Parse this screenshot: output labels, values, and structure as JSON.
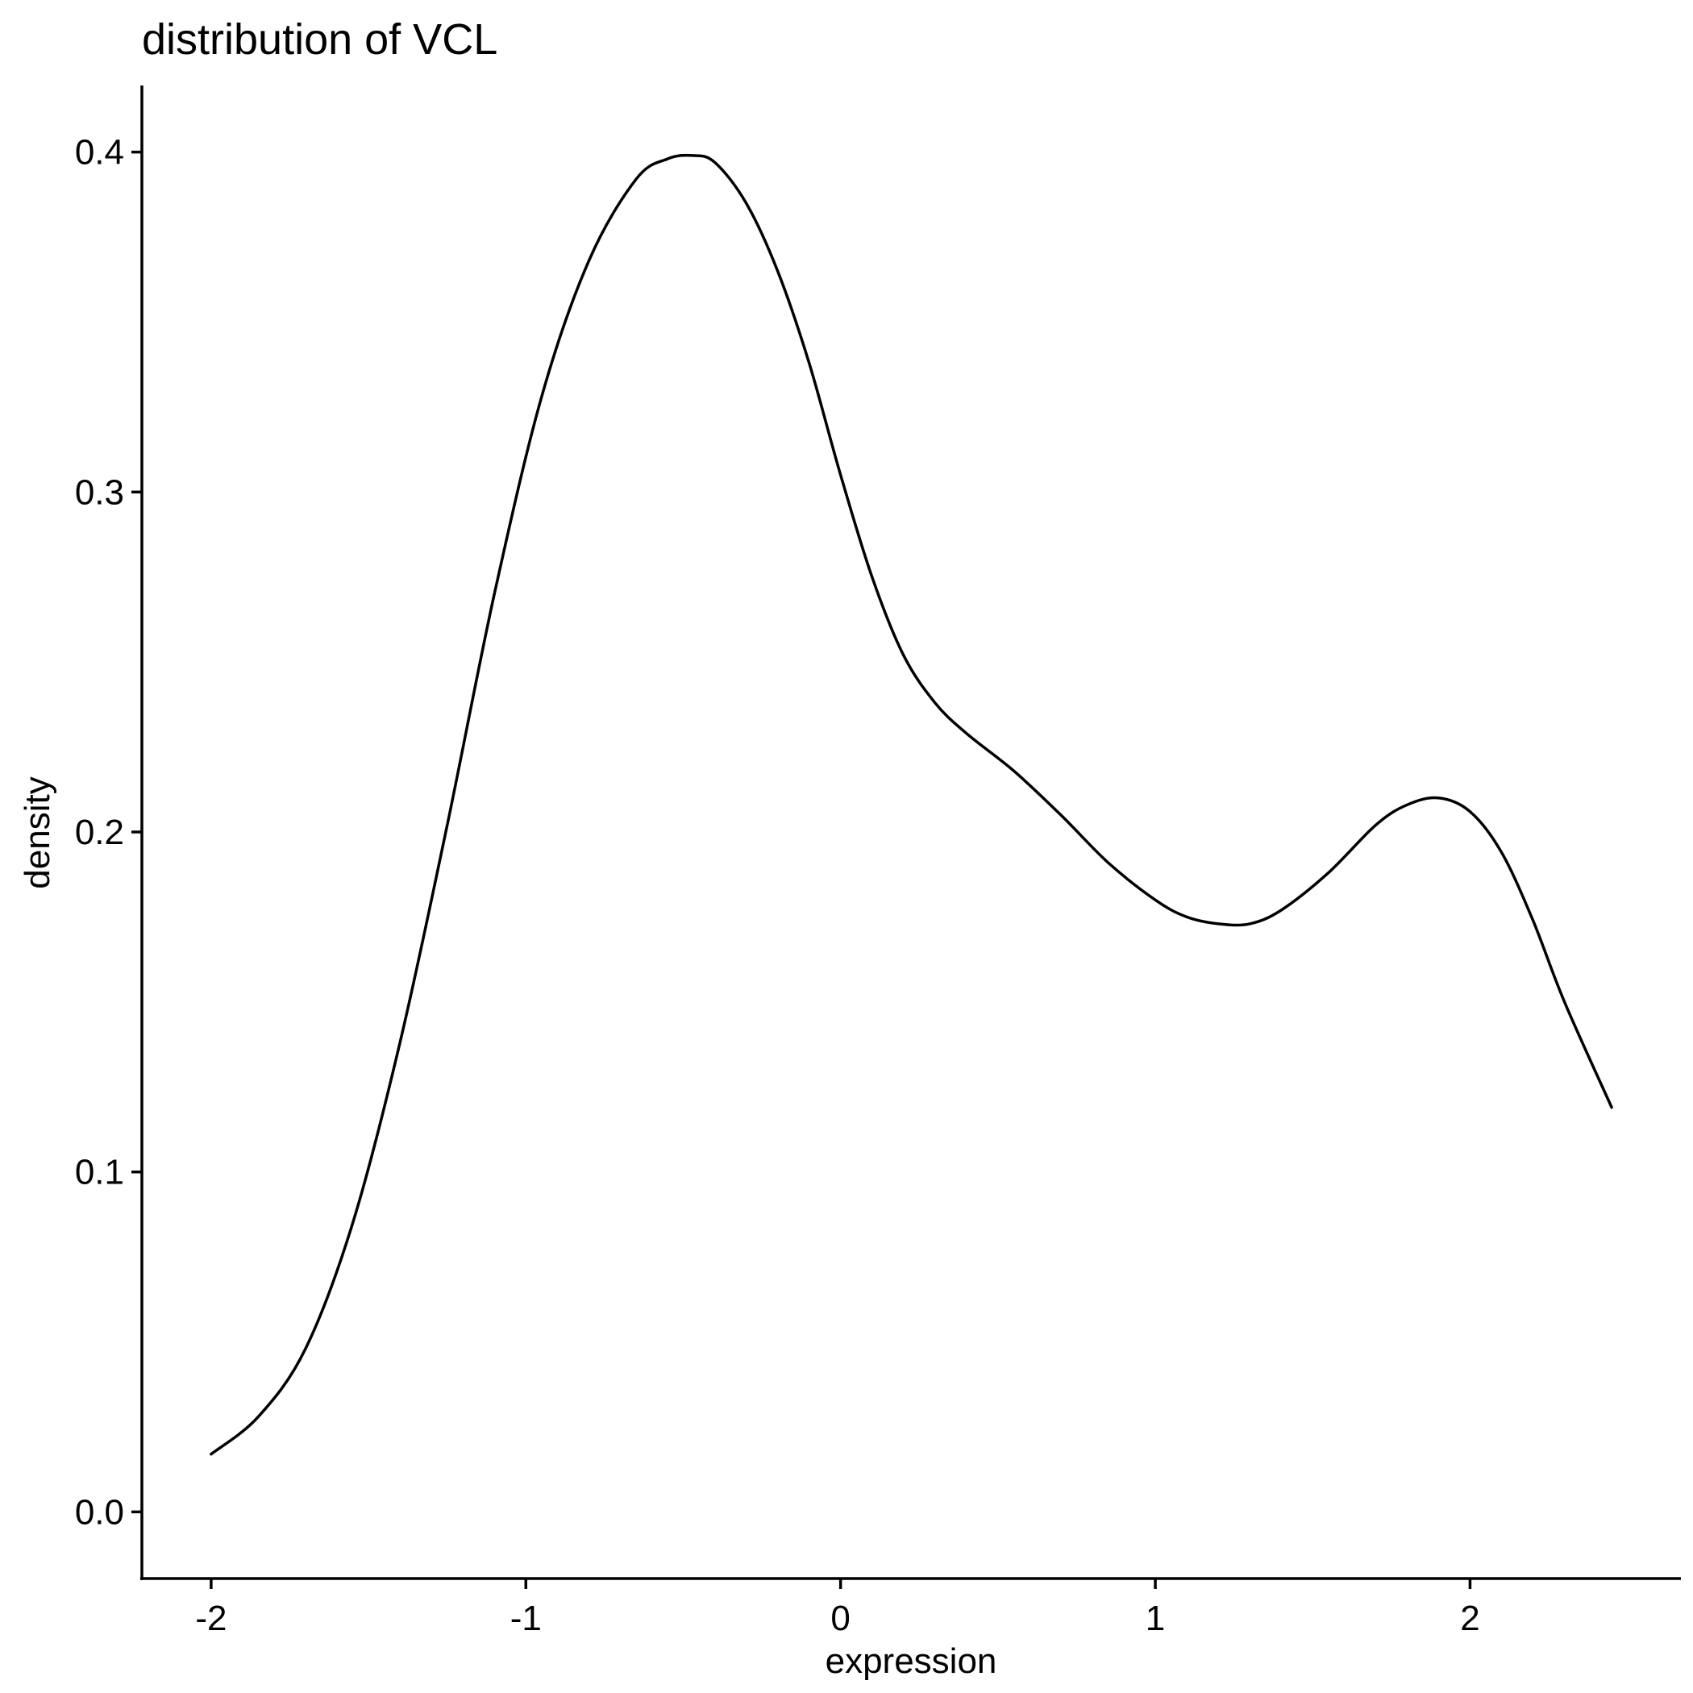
{
  "chart_data": {
    "type": "line",
    "title": "distribution of VCL",
    "xlabel": "expression",
    "ylabel": "density",
    "xlim": [
      -2.22,
      2.67
    ],
    "ylim": [
      -0.0196,
      0.4196
    ],
    "x_ticks": [
      -2,
      -1,
      0,
      1,
      2
    ],
    "y_ticks": [
      0.0,
      0.1,
      0.2,
      0.3,
      0.4
    ],
    "x_tick_labels": [
      "-2",
      "-1",
      "0",
      "1",
      "2"
    ],
    "y_tick_labels": [
      "0.0",
      "0.1",
      "0.2",
      "0.3",
      "0.4"
    ],
    "grid": false,
    "legend": "none",
    "line_color": "#000000",
    "series": [
      {
        "x": [
          -2.0,
          -1.85,
          -1.7,
          -1.55,
          -1.4,
          -1.25,
          -1.1,
          -0.95,
          -0.8,
          -0.65,
          -0.55,
          -0.47,
          -0.4,
          -0.3,
          -0.2,
          -0.1,
          0.0,
          0.1,
          0.2,
          0.3,
          0.4,
          0.55,
          0.7,
          0.85,
          1.0,
          1.1,
          1.2,
          1.3,
          1.4,
          1.55,
          1.7,
          1.8,
          1.9,
          2.0,
          2.1,
          2.2,
          2.3,
          2.45
        ],
        "y": [
          0.017,
          0.028,
          0.048,
          0.085,
          0.138,
          0.202,
          0.27,
          0.328,
          0.368,
          0.392,
          0.398,
          0.399,
          0.397,
          0.385,
          0.365,
          0.338,
          0.305,
          0.275,
          0.252,
          0.238,
          0.229,
          0.218,
          0.205,
          0.191,
          0.18,
          0.175,
          0.173,
          0.173,
          0.177,
          0.188,
          0.202,
          0.208,
          0.21,
          0.206,
          0.194,
          0.174,
          0.15,
          0.119
        ]
      }
    ]
  }
}
